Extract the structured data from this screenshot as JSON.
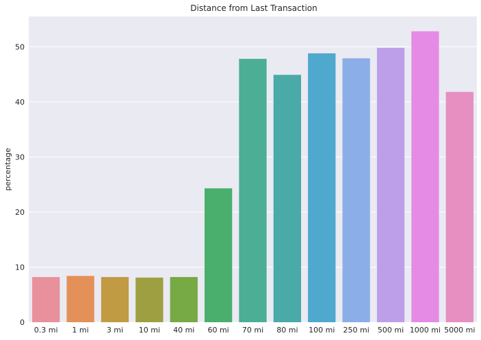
{
  "chart_data": {
    "type": "bar",
    "title": "Distance from Last Transaction",
    "xlabel": "",
    "ylabel": "percentage",
    "ylim": [
      0,
      55.5
    ],
    "yticks": [
      0,
      10,
      20,
      30,
      40,
      50
    ],
    "grid": true,
    "categories": [
      "0.3 mi",
      "1 mi",
      "3 mi",
      "10 mi",
      "40 mi",
      "60 mi",
      "70 mi",
      "80 mi",
      "100 mi",
      "250 mi",
      "500 mi",
      "1000 mi",
      "5000 mi"
    ],
    "values": [
      8.2,
      8.4,
      8.2,
      8.1,
      8.2,
      24.3,
      47.8,
      44.9,
      48.8,
      47.9,
      49.8,
      52.8,
      41.8
    ],
    "colors": [
      "#e8919c",
      "#e39158",
      "#c19a44",
      "#9e9f41",
      "#77a944",
      "#4aae6d",
      "#4bae95",
      "#4aaaa8",
      "#4fa8ce",
      "#8caee8",
      "#bd9fe9",
      "#e58be5",
      "#e68fc0"
    ],
    "background": "#eaeaf2",
    "grid_color": "#ffffff"
  }
}
